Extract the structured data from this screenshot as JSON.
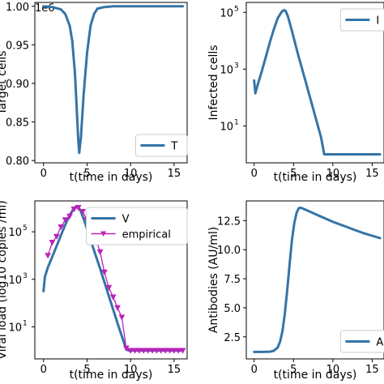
{
  "chart_data": [
    {
      "type": "line",
      "ylabel": "Target cells",
      "xlabel": "t(time in days)",
      "offset_text": "1e6",
      "xlim": [
        -1,
        16.5
      ],
      "ylim": [
        0.797,
        1.005
      ],
      "xticks": [
        0,
        5,
        10,
        15
      ],
      "xtick_labels": [
        "0",
        "5",
        "10",
        "15"
      ],
      "yticks": [
        0.8,
        0.85,
        0.9,
        0.95,
        1.0
      ],
      "ytick_labels": [
        "0.80",
        "0.85",
        "0.90",
        "0.95",
        "1.00"
      ],
      "yscale": "linear",
      "legend_position": "lower-right",
      "series": [
        {
          "name": "T",
          "color": "#3574a6",
          "x": [
            0,
            1,
            2,
            2.5,
            3,
            3.3,
            3.6,
            3.8,
            4.0,
            4.1,
            4.3,
            4.6,
            5.0,
            5.4,
            5.8,
            6.2,
            7,
            8,
            10,
            12,
            14,
            16
          ],
          "y": [
            1.0,
            0.999,
            0.996,
            0.99,
            0.975,
            0.955,
            0.915,
            0.87,
            0.825,
            0.81,
            0.83,
            0.885,
            0.94,
            0.975,
            0.99,
            0.997,
            0.999,
            1.0,
            1.0,
            1.0,
            1.0,
            1.0
          ]
        }
      ]
    },
    {
      "type": "line",
      "ylabel": "Infected cells",
      "xlabel": "t(time in days)",
      "xlim": [
        -1,
        16.5
      ],
      "ylim": [
        -0.3,
        5.35
      ],
      "xticks": [
        0,
        5,
        10,
        15
      ],
      "xtick_labels": [
        "0",
        "5",
        "10",
        "15"
      ],
      "yticks": [
        1,
        3,
        5
      ],
      "ytick_labels": [
        "10",
        "10",
        "10"
      ],
      "ytick_exponents": [
        "1",
        "3",
        "5"
      ],
      "yscale": "log",
      "legend_position": "top-right",
      "series": [
        {
          "name": "I",
          "color": "#3574a6",
          "x": [
            0,
            0.15,
            0.5,
            1,
            1.5,
            2,
            2.5,
            3,
            3.5,
            3.8,
            4.0,
            4.3,
            4.8,
            5.5,
            6.5,
            7.5,
            8.5,
            8.9,
            10,
            12,
            14,
            16
          ],
          "y": [
            2.6,
            2.15,
            2.5,
            2.95,
            3.45,
            3.95,
            4.4,
            4.8,
            5.02,
            5.08,
            5.05,
            4.85,
            4.35,
            3.6,
            2.6,
            1.6,
            0.6,
            0.0,
            0.0,
            0.0,
            0.0,
            0.0
          ]
        }
      ]
    },
    {
      "type": "line",
      "ylabel": "Viral load (log10 copies /ml)",
      "xlabel": "t(time in days)",
      "xlim": [
        -1,
        16.5
      ],
      "ylim": [
        -0.35,
        6.3
      ],
      "xticks": [
        0,
        5,
        10,
        15
      ],
      "xtick_labels": [
        "0",
        "5",
        "10",
        "15"
      ],
      "yticks": [
        1,
        3,
        5
      ],
      "ytick_labels": [
        "10",
        "10",
        "10"
      ],
      "ytick_exponents": [
        "1",
        "3",
        "5"
      ],
      "yscale": "log",
      "legend_position": "top-right",
      "series": [
        {
          "name": "V",
          "color": "#3574a6",
          "x": [
            0,
            0.15,
            0.5,
            1,
            1.5,
            2,
            2.5,
            3,
            3.5,
            3.8,
            4.0,
            4.3,
            4.8,
            5.5,
            6.5,
            7.5,
            8.5,
            9.5,
            9.8,
            11,
            13,
            16
          ],
          "y": [
            2.5,
            3.1,
            3.5,
            3.95,
            4.4,
            4.85,
            5.3,
            5.7,
            6.0,
            6.08,
            6.05,
            5.85,
            5.35,
            4.55,
            3.45,
            2.3,
            1.15,
            0.05,
            0.0,
            0.0,
            0.0,
            0.0
          ]
        },
        {
          "name": "empirical",
          "color": "#bb22bb",
          "marker": "triangle-down",
          "x": [
            0.5,
            1,
            1.5,
            2,
            2.5,
            3,
            3.5,
            4,
            4.5,
            5,
            5.5,
            6,
            6.5,
            7,
            7.5,
            8,
            8.5,
            9,
            9.5,
            10,
            10.5,
            11,
            11.5,
            12,
            12.5,
            13,
            13.5,
            14,
            14.5,
            15,
            15.5,
            16
          ],
          "y": [
            4.0,
            4.55,
            4.8,
            5.2,
            5.5,
            5.65,
            5.95,
            6.02,
            5.85,
            5.5,
            4.95,
            4.7,
            4.15,
            3.3,
            2.65,
            2.25,
            1.8,
            1.4,
            0.1,
            0.0,
            0.0,
            0.0,
            0.0,
            0.0,
            0.0,
            0.0,
            0.0,
            0.0,
            0.0,
            0.0,
            0.0,
            0.0
          ]
        }
      ]
    },
    {
      "type": "line",
      "ylabel": "Antibodies (AU/ml)",
      "xlabel": "t(time in days)",
      "xlim": [
        -1,
        16.5
      ],
      "ylim": [
        0.6,
        14.2
      ],
      "xticks": [
        0,
        5,
        10,
        15
      ],
      "xtick_labels": [
        "0",
        "5",
        "10",
        "15"
      ],
      "yticks": [
        2.5,
        5.0,
        7.5,
        10.0,
        12.5
      ],
      "ytick_labels": [
        "2.5",
        "5.0",
        "7.5",
        "10.0",
        "12.5"
      ],
      "yscale": "linear",
      "legend_position": "lower-right",
      "series": [
        {
          "name": "A",
          "color": "#3574a6",
          "x": [
            0,
            1,
            2,
            2.5,
            3,
            3.3,
            3.6,
            3.9,
            4.2,
            4.5,
            4.8,
            5.1,
            5.4,
            5.7,
            6,
            7,
            8,
            9,
            10,
            11,
            12,
            13,
            14,
            15,
            16
          ],
          "y": [
            1.2,
            1.2,
            1.22,
            1.3,
            1.6,
            2.1,
            3.0,
            4.5,
            6.5,
            8.7,
            10.8,
            12.3,
            13.2,
            13.6,
            13.6,
            13.3,
            13.0,
            12.7,
            12.4,
            12.15,
            11.9,
            11.65,
            11.4,
            11.2,
            11.0
          ]
        }
      ]
    }
  ]
}
